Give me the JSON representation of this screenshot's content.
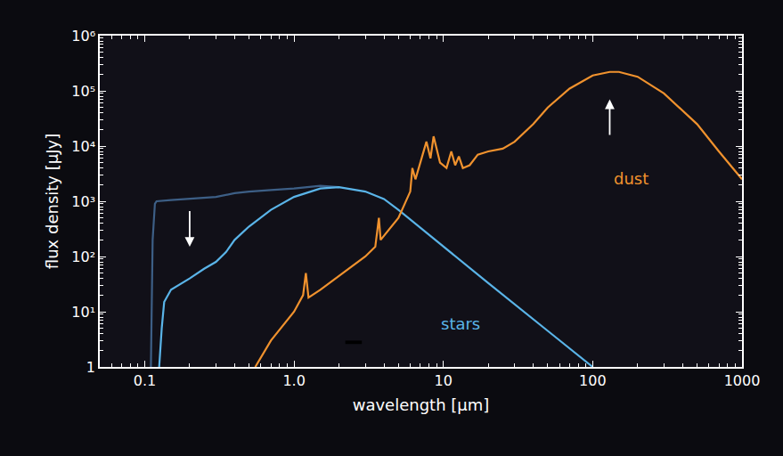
{
  "chart_data": {
    "type": "line",
    "x_label": "wavelength [µm]",
    "y_label": "flux density [µJy]",
    "log": true,
    "grid": false,
    "xlim": [
      0.05,
      1000
    ],
    "ylim": [
      1,
      1000000
    ],
    "xticks": [
      0.1,
      {
        "value": 1,
        "label": "1.0"
      },
      10,
      100,
      1000
    ],
    "yticks": [
      1,
      {
        "value": 10,
        "label": "10¹"
      },
      {
        "value": 100,
        "label": "10²"
      },
      {
        "value": 1000,
        "label": "10³"
      },
      {
        "value": 10000,
        "label": "10⁴"
      },
      {
        "value": 100000,
        "label": "10⁵"
      },
      {
        "value": 1000000,
        "label": "10⁶"
      }
    ],
    "series": [
      {
        "color": "#3d5f86",
        "x": [
          0.11,
          0.113,
          0.117,
          0.12,
          0.15,
          0.2,
          0.3,
          0.4,
          0.5,
          0.7,
          1.0,
          1.5,
          2.0
        ],
        "values": [
          1,
          200,
          900,
          1000,
          1050,
          1100,
          1200,
          1400,
          1500,
          1600,
          1700,
          1900,
          1800
        ]
      },
      {
        "color": "#5ab4e8",
        "x": [
          0.125,
          0.13,
          0.135,
          0.15,
          0.2,
          0.25,
          0.3,
          0.35,
          0.4,
          0.5,
          0.7,
          1.0,
          1.5,
          2.0,
          3.0,
          4.0,
          5.0,
          10,
          20,
          50,
          100
        ],
        "values": [
          1,
          5,
          15,
          25,
          40,
          60,
          80,
          120,
          200,
          350,
          700,
          1200,
          1700,
          1800,
          1500,
          1100,
          700,
          150,
          33,
          4.5,
          1
        ]
      },
      {
        "color": "#f0922e",
        "x": [
          0.55,
          0.7,
          1.0,
          1.15,
          1.2,
          1.25,
          1.5,
          2.0,
          3.0,
          3.5,
          3.7,
          3.8,
          5.0,
          6.0,
          6.2,
          6.5,
          7.7,
          8.2,
          8.6,
          9.5,
          10.5,
          11.3,
          12,
          12.7,
          13.5,
          15,
          17,
          20,
          25,
          30,
          40,
          50,
          70,
          100,
          130,
          150,
          200,
          300,
          500,
          700,
          1000
        ],
        "values": [
          1,
          3,
          10,
          20,
          50,
          18,
          25,
          45,
          100,
          150,
          500,
          200,
          500,
          1500,
          4000,
          2500,
          12000,
          6000,
          15000,
          5000,
          4000,
          8000,
          4500,
          6500,
          4000,
          4500,
          7000,
          8000,
          9000,
          12000,
          25000,
          50000,
          110000,
          190000,
          220000,
          220000,
          180000,
          90000,
          25000,
          8000,
          2500
        ]
      }
    ],
    "annotations": [
      {
        "text": "dust",
        "x": 180,
        "y": 2600,
        "color": "#f0922e"
      },
      {
        "text": "stars",
        "x": 13,
        "y": 6,
        "color": "#5ab4e8"
      }
    ]
  }
}
